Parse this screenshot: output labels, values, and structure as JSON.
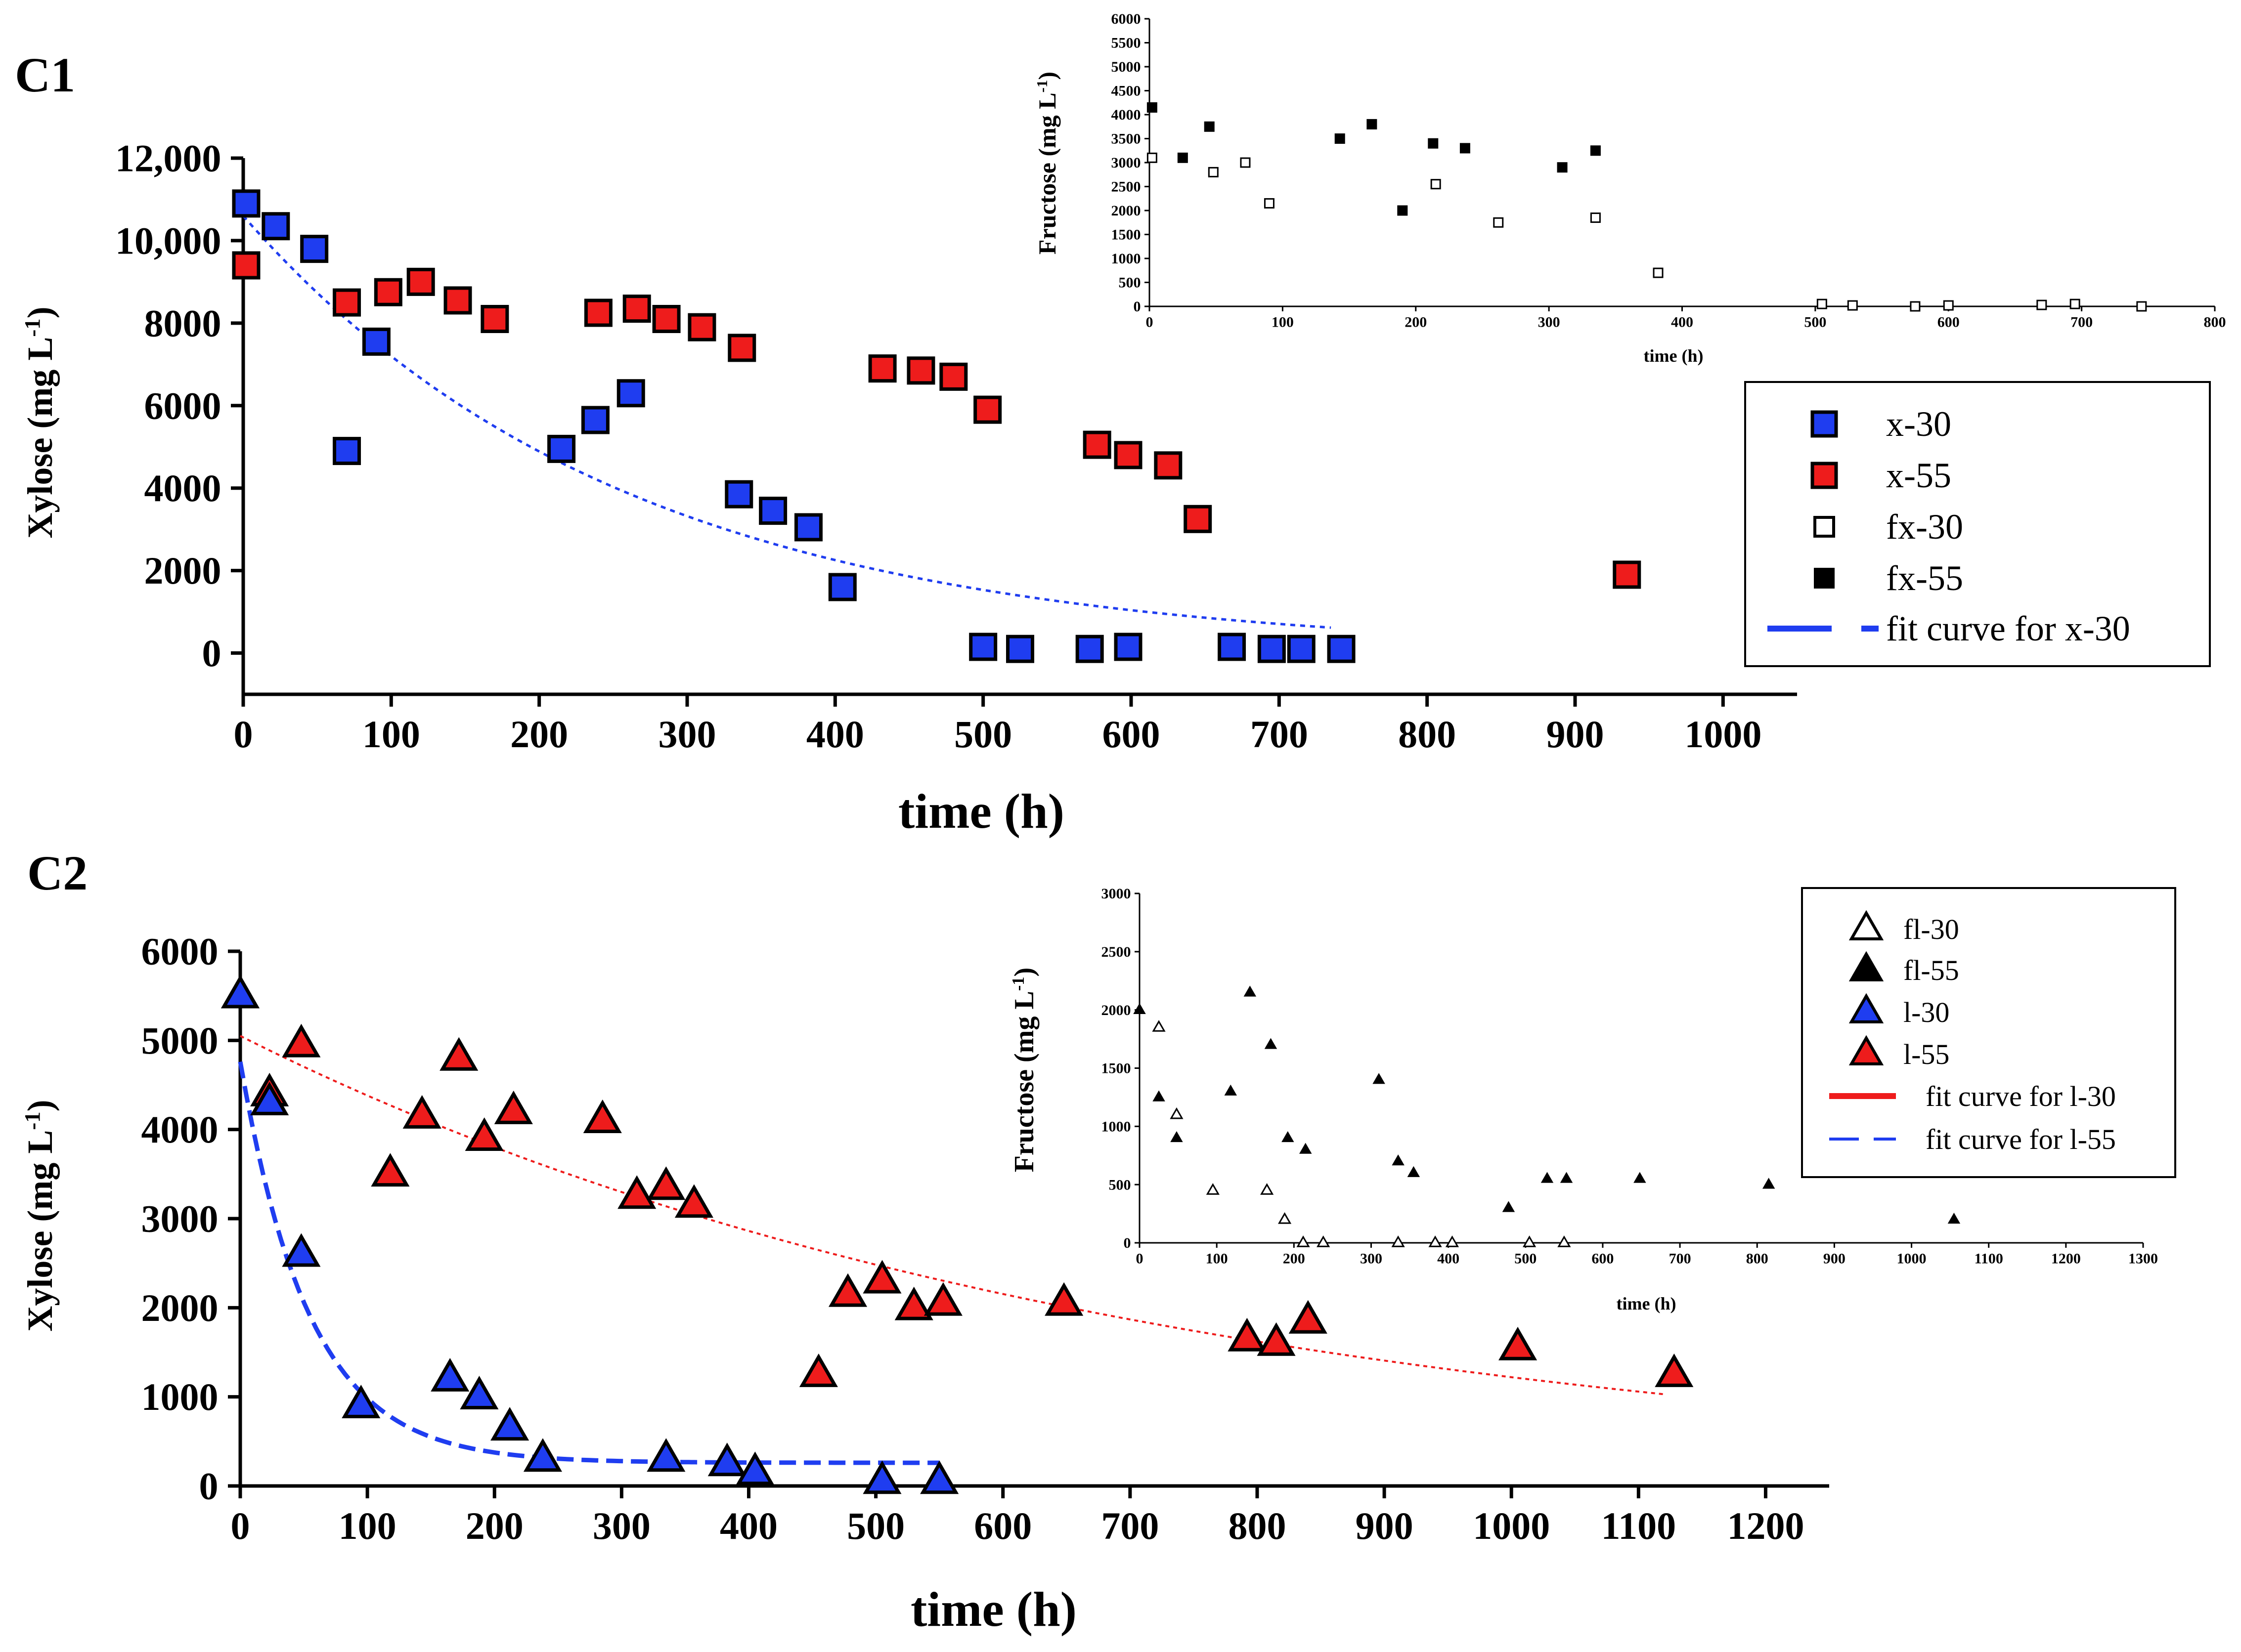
{
  "colors": {
    "blue": "#1f3df0",
    "red": "#ee1c1c",
    "black": "#000000",
    "white": "#ffffff"
  },
  "chart_data": [
    {
      "panel": "C1",
      "type": "scatter",
      "xlabel": "time (h)",
      "ylabel": "Xylose (mg L-1)",
      "xlim": [
        0,
        1050
      ],
      "ylim": [
        -1000,
        12000
      ],
      "xticks": [
        "0",
        "100",
        "200",
        "300",
        "400",
        "500",
        "600",
        "700",
        "800",
        "900",
        "1000"
      ],
      "yticks": [
        "0",
        "2000",
        "4000",
        "6000",
        "8000",
        "10,000",
        "12,000"
      ],
      "legend_position": "right",
      "series": [
        {
          "name": "x-30",
          "marker": "square",
          "fill": "#1f3df0",
          "x": [
            2,
            22,
            48,
            70,
            90,
            215,
            238,
            262,
            335,
            358,
            382,
            405,
            500,
            525,
            572,
            598,
            668,
            695,
            715,
            742
          ],
          "y": [
            10900,
            10350,
            9800,
            4900,
            7550,
            4950,
            5650,
            6300,
            3850,
            3450,
            3050,
            1600,
            150,
            100,
            100,
            150,
            150,
            100,
            100,
            100
          ]
        },
        {
          "name": "x-55",
          "marker": "square",
          "fill": "#ee1c1c",
          "x": [
            2,
            70,
            98,
            120,
            145,
            170,
            240,
            266,
            286,
            310,
            337,
            432,
            458,
            480,
            503,
            577,
            598,
            625,
            645,
            935
          ],
          "y": [
            9400,
            8500,
            8750,
            9000,
            8550,
            8100,
            8250,
            8350,
            8100,
            7900,
            7400,
            6900,
            6850,
            6700,
            5900,
            5050,
            4800,
            4550,
            3250,
            1900
          ]
        },
        {
          "name": "fx-30",
          "marker": "square-open",
          "fill": "#ffffff"
        },
        {
          "name": "fx-55",
          "marker": "square",
          "fill": "#000000"
        },
        {
          "name": "fit curve for x-30",
          "marker": "line",
          "stroke": "#1f3df0"
        }
      ],
      "inset": {
        "xlabel": "time (h)",
        "ylabel": "Fructose (mg L-1)",
        "xlim": [
          0,
          800
        ],
        "ylim": [
          0,
          6000
        ],
        "xticks": [
          "0",
          "100",
          "200",
          "300",
          "400",
          "500",
          "600",
          "700",
          "800"
        ],
        "yticks": [
          "0",
          "500",
          "1000",
          "1500",
          "2000",
          "2500",
          "3000",
          "3500",
          "4000",
          "4500",
          "5000",
          "5500",
          "6000"
        ],
        "series": [
          {
            "name": "fx-30",
            "x": [
              2,
              48,
              72,
              90,
              215,
              262,
              335,
              382,
              505,
              528,
              575,
              600,
              670,
              695,
              745
            ],
            "y": [
              3100,
              2800,
              3000,
              2150,
              2550,
              1750,
              1850,
              700,
              50,
              20,
              0,
              20,
              30,
              50,
              0
            ]
          },
          {
            "name": "fx-55",
            "x": [
              2,
              25,
              45,
              143,
              167,
              190,
              213,
              237,
              310,
              335
            ],
            "y": [
              4150,
              3100,
              3750,
              3500,
              3800,
              2000,
              3400,
              3300,
              2900,
              3250
            ]
          }
        ]
      }
    },
    {
      "panel": "C2",
      "type": "scatter",
      "xlabel": "time (h)",
      "ylabel": "Xylose (mg L-1)",
      "xlim": [
        0,
        1250
      ],
      "ylim": [
        0,
        6000
      ],
      "xticks": [
        "0",
        "100",
        "200",
        "300",
        "400",
        "500",
        "600",
        "700",
        "800",
        "900",
        "1000",
        "1100",
        "1200"
      ],
      "yticks": [
        "0",
        "1000",
        "2000",
        "3000",
        "4000",
        "5000",
        "6000"
      ],
      "legend_position": "top-right",
      "series": [
        {
          "name": "fl-30",
          "marker": "triangle-open",
          "fill": "#ffffff"
        },
        {
          "name": "fl-55",
          "marker": "triangle",
          "fill": "#000000"
        },
        {
          "name": "l-30",
          "marker": "triangle",
          "fill": "#1f3df0",
          "x": [
            0,
            23,
            48,
            95,
            165,
            188,
            212,
            238,
            335,
            383,
            405,
            505,
            550
          ],
          "y": [
            5500,
            4300,
            2600,
            900,
            1200,
            1000,
            650,
            300,
            300,
            250,
            150,
            50,
            50
          ]
        },
        {
          "name": "l-55",
          "marker": "triangle",
          "fill": "#ee1c1c",
          "x": [
            0,
            23,
            48,
            118,
            143,
            172,
            192,
            215,
            285,
            312,
            335,
            357,
            455,
            478,
            505,
            530,
            553,
            648,
            792,
            815,
            840,
            1005,
            1128
          ],
          "y": [
            5500,
            4400,
            4950,
            3500,
            4150,
            4800,
            3900,
            4200,
            4100,
            3250,
            3350,
            3150,
            1250,
            2150,
            2300,
            2000,
            2050,
            2050,
            1650,
            1600,
            1850,
            1550,
            1250
          ]
        },
        {
          "name": "fit curve for l-30",
          "marker": "line",
          "stroke": "#ee1c1c"
        },
        {
          "name": "fit curve for l-55",
          "marker": "line",
          "stroke": "#1f3df0"
        }
      ],
      "inset": {
        "xlabel": "time (h)",
        "ylabel": "Fructose (mg L-1)",
        "xlim": [
          0,
          1300
        ],
        "ylim": [
          0,
          3000
        ],
        "xticks": [
          "0",
          "100",
          "200",
          "300",
          "400",
          "500",
          "600",
          "700",
          "800",
          "900",
          "1000",
          "1100",
          "1200",
          "1300"
        ],
        "yticks": [
          "0",
          "500",
          "1000",
          "1500",
          "2000",
          "2500",
          "3000"
        ],
        "series": [
          {
            "name": "fl-30",
            "x": [
              25,
              48,
              95,
              165,
              188,
              212,
              238,
              335,
              383,
              405,
              505,
              550
            ],
            "y": [
              1850,
              1100,
              450,
              450,
              200,
              0,
              0,
              0,
              0,
              0,
              0,
              0
            ]
          },
          {
            "name": "fl-55",
            "x": [
              0,
              25,
              48,
              118,
              143,
              170,
              192,
              215,
              310,
              335,
              355,
              478,
              528,
              553,
              648,
              815,
              1055
            ],
            "y": [
              2000,
              1250,
              900,
              1300,
              2150,
              1700,
              900,
              800,
              1400,
              700,
              600,
              300,
              550,
              550,
              550,
              500,
              200
            ]
          }
        ]
      }
    }
  ],
  "panel_labels": {
    "c1": "C1",
    "c2": "C2"
  }
}
